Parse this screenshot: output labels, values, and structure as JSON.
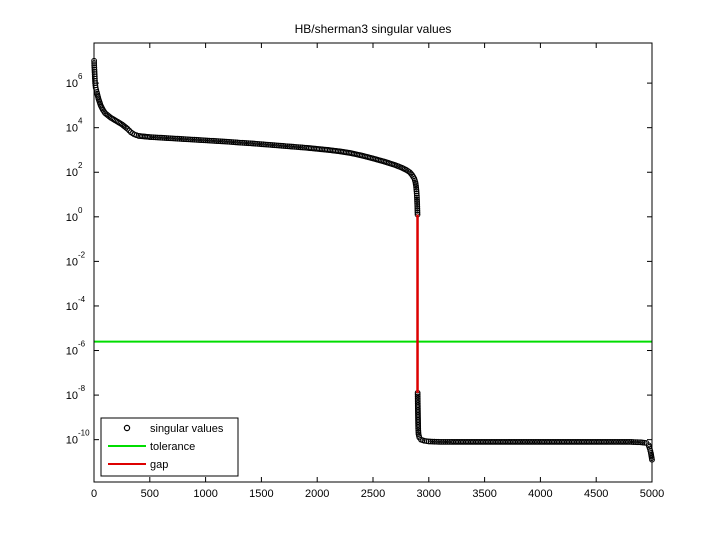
{
  "chart_data": {
    "type": "scatter",
    "title": "HB/sherman3 singular values",
    "xlabel": "",
    "ylabel": "",
    "y_scale": "log",
    "xlim": [
      0,
      5000
    ],
    "ylim_log10": [
      -11.9,
      7.8
    ],
    "grid": false,
    "legend_position": "bottom-left",
    "x_ticks": [
      {
        "label": "0",
        "value": 0
      },
      {
        "label": "500",
        "value": 500
      },
      {
        "label": "1000",
        "value": 1000
      },
      {
        "label": "1500",
        "value": 1500
      },
      {
        "label": "2000",
        "value": 2000
      },
      {
        "label": "2500",
        "value": 2500
      },
      {
        "label": "3000",
        "value": 3000
      },
      {
        "label": "3500",
        "value": 3500
      },
      {
        "label": "4000",
        "value": 4000
      },
      {
        "label": "4500",
        "value": 4500
      },
      {
        "label": "5000",
        "value": 5000
      }
    ],
    "y_ticks": [
      {
        "base": "10",
        "exp": "6",
        "log10": 6
      },
      {
        "base": "10",
        "exp": "4",
        "log10": 4
      },
      {
        "base": "10",
        "exp": "2",
        "log10": 2
      },
      {
        "base": "10",
        "exp": "0",
        "log10": 0
      },
      {
        "base": "10",
        "exp": "-2",
        "log10": -2
      },
      {
        "base": "10",
        "exp": "-4",
        "log10": -4
      },
      {
        "base": "10",
        "exp": "-6",
        "log10": -6
      },
      {
        "base": "10",
        "exp": "-8",
        "log10": -8
      },
      {
        "base": "10",
        "exp": "-10",
        "log10": -10
      }
    ],
    "series": [
      {
        "name": "singular values",
        "marker": "o",
        "color": "#000000",
        "points_log10": [
          [
            1,
            7.0
          ],
          [
            2,
            6.8
          ],
          [
            4,
            6.6
          ],
          [
            6,
            6.4
          ],
          [
            8,
            6.2
          ],
          [
            10,
            6.0
          ],
          [
            15,
            5.8
          ],
          [
            25,
            5.6
          ],
          [
            40,
            5.3
          ],
          [
            60,
            5.0
          ],
          [
            80,
            4.8
          ],
          [
            100,
            4.65
          ],
          [
            150,
            4.45
          ],
          [
            200,
            4.3
          ],
          [
            250,
            4.15
          ],
          [
            300,
            3.95
          ],
          [
            330,
            3.8
          ],
          [
            360,
            3.7
          ],
          [
            400,
            3.63
          ],
          [
            500,
            3.58
          ],
          [
            600,
            3.55
          ],
          [
            700,
            3.52
          ],
          [
            800,
            3.49
          ],
          [
            900,
            3.46
          ],
          [
            1000,
            3.43
          ],
          [
            1100,
            3.4
          ],
          [
            1200,
            3.37
          ],
          [
            1300,
            3.33
          ],
          [
            1400,
            3.3
          ],
          [
            1500,
            3.26
          ],
          [
            1600,
            3.22
          ],
          [
            1700,
            3.18
          ],
          [
            1800,
            3.14
          ],
          [
            1900,
            3.1
          ],
          [
            2000,
            3.05
          ],
          [
            2100,
            3.0
          ],
          [
            2200,
            2.94
          ],
          [
            2300,
            2.86
          ],
          [
            2400,
            2.75
          ],
          [
            2500,
            2.62
          ],
          [
            2600,
            2.48
          ],
          [
            2700,
            2.32
          ],
          [
            2760,
            2.2
          ],
          [
            2800,
            2.1
          ],
          [
            2830,
            2.0
          ],
          [
            2850,
            1.88
          ],
          [
            2870,
            1.72
          ],
          [
            2880,
            1.55
          ],
          [
            2885,
            1.4
          ],
          [
            2890,
            1.15
          ],
          [
            2893,
            0.95
          ],
          [
            2895,
            0.7
          ],
          [
            2897,
            0.45
          ],
          [
            2899,
            0.1
          ],
          [
            2900,
            -7.9
          ],
          [
            2901,
            -8.3
          ],
          [
            2902,
            -8.6
          ],
          [
            2903,
            -8.9
          ],
          [
            2904,
            -9.2
          ],
          [
            2905,
            -9.5
          ],
          [
            2908,
            -9.75
          ],
          [
            2915,
            -9.9
          ],
          [
            2930,
            -10.0
          ],
          [
            2960,
            -10.05
          ],
          [
            3000,
            -10.08
          ],
          [
            3100,
            -10.1
          ],
          [
            3200,
            -10.1
          ],
          [
            3500,
            -10.1
          ],
          [
            3800,
            -10.1
          ],
          [
            4000,
            -10.1
          ],
          [
            4300,
            -10.1
          ],
          [
            4600,
            -10.1
          ],
          [
            4800,
            -10.1
          ],
          [
            4900,
            -10.12
          ],
          [
            4950,
            -10.15
          ],
          [
            4970,
            -10.25
          ],
          [
            4980,
            -10.4
          ],
          [
            4990,
            -10.6
          ],
          [
            4995,
            -10.75
          ],
          [
            5000,
            -10.9
          ]
        ]
      },
      {
        "name": "tolerance",
        "color": "#00dd00",
        "value_log10": -5.6
      },
      {
        "name": "gap",
        "color": "#dd0000",
        "x": 2899,
        "from_log10": 0.1,
        "to_log10": -7.9
      }
    ]
  }
}
